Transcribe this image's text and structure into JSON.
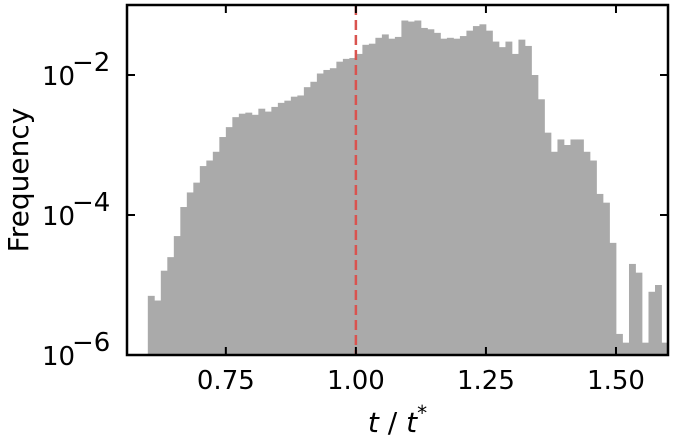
{
  "chart_data": {
    "type": "bar",
    "subtype": "histogram",
    "xlabel": "t / t*",
    "xlabel_parts": {
      "var": "t",
      "sep": " / ",
      "sup": "*"
    },
    "ylabel": "Frequency",
    "xlim": [
      0.56,
      1.6
    ],
    "ylim": [
      1e-06,
      0.1
    ],
    "yscale": "log",
    "grid": false,
    "bar_color": "#aaaaaa",
    "reference_line": {
      "x": 1.0,
      "color": "#d9534f",
      "style": "dashed"
    },
    "x_ticks": [
      {
        "value": 0.75,
        "label": "0.75"
      },
      {
        "value": 1.0,
        "label": "1.00"
      },
      {
        "value": 1.25,
        "label": "1.25"
      },
      {
        "value": 1.5,
        "label": "1.50"
      }
    ],
    "y_ticks": [
      {
        "value": 1e-06,
        "base": "10",
        "exp": "−6"
      },
      {
        "value": 0.0001,
        "base": "10",
        "exp": "−4"
      },
      {
        "value": 0.01,
        "base": "10",
        "exp": "−2"
      }
    ],
    "bin_start": 0.6,
    "bin_width": 0.0125,
    "values": [
      7e-06,
      6e-06,
      1.6e-05,
      2.5e-05,
      5e-05,
      0.00013,
      0.00021,
      0.00029,
      0.0005,
      0.0006,
      0.0008,
      0.0013,
      0.0018,
      0.0025,
      0.0028,
      0.0029,
      0.0027,
      0.0033,
      0.003,
      0.0035,
      0.004,
      0.0043,
      0.0049,
      0.0051,
      0.0067,
      0.008,
      0.0105,
      0.0118,
      0.0125,
      0.0155,
      0.017,
      0.0175,
      0.02,
      0.027,
      0.028,
      0.034,
      0.038,
      0.033,
      0.035,
      0.06,
      0.058,
      0.06,
      0.047,
      0.045,
      0.04,
      0.033,
      0.034,
      0.033,
      0.036,
      0.043,
      0.05,
      0.053,
      0.043,
      0.03,
      0.025,
      0.03,
      0.02,
      0.032,
      0.026,
      0.01,
      0.0045,
      0.0015,
      0.0008,
      0.0012,
      0.001,
      0.0012,
      0.0012,
      0.0008,
      0.0006,
      0.0002,
      0.00015,
      4e-05,
      2e-06,
      1.5e-06,
      2e-05,
      1.5e-05,
      1.5e-06,
      8e-06,
      1e-05,
      1.5e-06
    ]
  }
}
